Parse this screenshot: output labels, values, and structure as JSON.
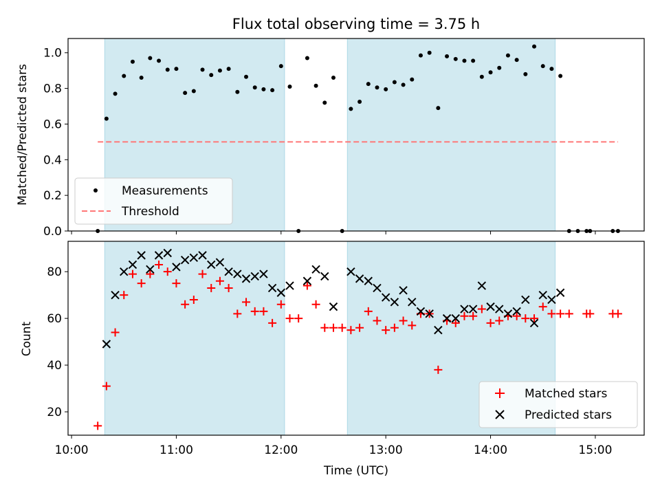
{
  "chart_data": [
    {
      "type": "scatter",
      "title": "Flux total observing time = 3.75 h",
      "xlabel": "",
      "ylabel": "Matched/Predicted stars",
      "xlim": [
        "09:58",
        "15:28"
      ],
      "ylim": [
        0,
        1.08
      ],
      "yticks": [
        "0.0",
        "0.2",
        "0.4",
        "0.6",
        "0.8",
        "1.0"
      ],
      "shaded_intervals": [
        [
          "10:19",
          "12:02"
        ],
        [
          "12:38",
          "14:37"
        ]
      ],
      "series": [
        {
          "name": "Measurements",
          "marker": "dot",
          "color": "#000000",
          "points": [
            [
              "10:15",
              0.0
            ],
            [
              "10:20",
              0.63
            ],
            [
              "10:25",
              0.77
            ],
            [
              "10:30",
              0.87
            ],
            [
              "10:35",
              0.95
            ],
            [
              "10:40",
              0.86
            ],
            [
              "10:45",
              0.97
            ],
            [
              "10:50",
              0.955
            ],
            [
              "10:55",
              0.905
            ],
            [
              "11:00",
              0.91
            ],
            [
              "11:05",
              0.775
            ],
            [
              "11:10",
              0.785
            ],
            [
              "11:15",
              0.905
            ],
            [
              "11:20",
              0.875
            ],
            [
              "11:25",
              0.9
            ],
            [
              "11:30",
              0.91
            ],
            [
              "11:35",
              0.78
            ],
            [
              "11:40",
              0.865
            ],
            [
              "11:45",
              0.805
            ],
            [
              "11:50",
              0.795
            ],
            [
              "11:55",
              0.79
            ],
            [
              "12:00",
              0.925
            ],
            [
              "12:05",
              0.81
            ],
            [
              "12:10",
              0.0
            ],
            [
              "12:15",
              0.97
            ],
            [
              "12:20",
              0.815
            ],
            [
              "12:25",
              0.72
            ],
            [
              "12:30",
              0.86
            ],
            [
              "12:35",
              0.0
            ],
            [
              "12:40",
              0.685
            ],
            [
              "12:45",
              0.725
            ],
            [
              "12:50",
              0.825
            ],
            [
              "12:55",
              0.805
            ],
            [
              "13:00",
              0.795
            ],
            [
              "13:05",
              0.835
            ],
            [
              "13:10",
              0.82
            ],
            [
              "13:15",
              0.85
            ],
            [
              "13:20",
              0.985
            ],
            [
              "13:25",
              1.0
            ],
            [
              "13:30",
              0.69
            ],
            [
              "13:35",
              0.98
            ],
            [
              "13:40",
              0.965
            ],
            [
              "13:45",
              0.955
            ],
            [
              "13:50",
              0.955
            ],
            [
              "13:55",
              0.865
            ],
            [
              "14:00",
              0.89
            ],
            [
              "14:05",
              0.915
            ],
            [
              "14:10",
              0.985
            ],
            [
              "14:15",
              0.96
            ],
            [
              "14:20",
              0.88
            ],
            [
              "14:25",
              1.035
            ],
            [
              "14:30",
              0.925
            ],
            [
              "14:35",
              0.91
            ],
            [
              "14:40",
              0.87
            ],
            [
              "14:45",
              0.0
            ],
            [
              "14:50",
              0.0
            ],
            [
              "14:55",
              0.0
            ],
            [
              "14:57",
              0.0
            ],
            [
              "15:10",
              0.0
            ],
            [
              "15:13",
              0.0
            ]
          ]
        },
        {
          "name": "Threshold",
          "type": "line",
          "style": "dashed",
          "color": "#ff7777",
          "x": [
            "10:15",
            "15:13"
          ],
          "values": [
            0.5,
            0.5
          ]
        }
      ],
      "legend": "lower-left",
      "grid": false
    },
    {
      "type": "scatter",
      "title": "",
      "xlabel": "Time (UTC)",
      "ylabel": "Count",
      "xlim": [
        "09:58",
        "15:28"
      ],
      "ylim": [
        10,
        93
      ],
      "xticks": [
        "10:00",
        "11:00",
        "12:00",
        "13:00",
        "14:00",
        "15:00"
      ],
      "yticks": [
        "20",
        "40",
        "60",
        "80"
      ],
      "shaded_intervals": [
        [
          "10:19",
          "12:02"
        ],
        [
          "12:38",
          "14:37"
        ]
      ],
      "series": [
        {
          "name": "Matched stars",
          "marker": "plus",
          "color": "#ff0000",
          "points": [
            [
              "10:15",
              14
            ],
            [
              "10:20",
              31
            ],
            [
              "10:25",
              54
            ],
            [
              "10:30",
              70
            ],
            [
              "10:35",
              79
            ],
            [
              "10:40",
              75
            ],
            [
              "10:45",
              79
            ],
            [
              "10:50",
              83
            ],
            [
              "10:55",
              80
            ],
            [
              "11:00",
              75
            ],
            [
              "11:05",
              66
            ],
            [
              "11:10",
              68
            ],
            [
              "11:15",
              79
            ],
            [
              "11:20",
              73
            ],
            [
              "11:25",
              76
            ],
            [
              "11:30",
              73
            ],
            [
              "11:35",
              62
            ],
            [
              "11:40",
              67
            ],
            [
              "11:45",
              63
            ],
            [
              "11:50",
              63
            ],
            [
              "11:55",
              58
            ],
            [
              "12:00",
              66
            ],
            [
              "12:05",
              60
            ],
            [
              "12:10",
              60
            ],
            [
              "12:15",
              74
            ],
            [
              "12:20",
              66
            ],
            [
              "12:25",
              56
            ],
            [
              "12:30",
              56
            ],
            [
              "12:35",
              56
            ],
            [
              "12:40",
              55
            ],
            [
              "12:45",
              56
            ],
            [
              "12:50",
              63
            ],
            [
              "12:55",
              59
            ],
            [
              "13:00",
              55
            ],
            [
              "13:05",
              56
            ],
            [
              "13:10",
              59
            ],
            [
              "13:15",
              57
            ],
            [
              "13:20",
              62
            ],
            [
              "13:25",
              62
            ],
            [
              "13:30",
              38
            ],
            [
              "13:35",
              59
            ],
            [
              "13:40",
              58
            ],
            [
              "13:45",
              61
            ],
            [
              "13:50",
              61
            ],
            [
              "13:55",
              64
            ],
            [
              "14:00",
              58
            ],
            [
              "14:05",
              59
            ],
            [
              "14:10",
              61
            ],
            [
              "14:15",
              61
            ],
            [
              "14:20",
              60
            ],
            [
              "14:25",
              60
            ],
            [
              "14:30",
              65
            ],
            [
              "14:35",
              62
            ],
            [
              "14:40",
              62
            ],
            [
              "14:45",
              62
            ],
            [
              "14:55",
              62
            ],
            [
              "14:57",
              62
            ],
            [
              "15:10",
              62
            ],
            [
              "15:13",
              62
            ]
          ]
        },
        {
          "name": "Predicted stars",
          "marker": "x",
          "color": "#000000",
          "points": [
            [
              "10:20",
              49
            ],
            [
              "10:25",
              70
            ],
            [
              "10:30",
              80
            ],
            [
              "10:35",
              83
            ],
            [
              "10:40",
              87
            ],
            [
              "10:45",
              81
            ],
            [
              "10:50",
              87
            ],
            [
              "10:55",
              88
            ],
            [
              "11:00",
              82
            ],
            [
              "11:05",
              85
            ],
            [
              "11:10",
              86
            ],
            [
              "11:15",
              87
            ],
            [
              "11:20",
              83
            ],
            [
              "11:25",
              84
            ],
            [
              "11:30",
              80
            ],
            [
              "11:35",
              79
            ],
            [
              "11:40",
              77
            ],
            [
              "11:45",
              78
            ],
            [
              "11:50",
              79
            ],
            [
              "11:55",
              73
            ],
            [
              "12:00",
              71
            ],
            [
              "12:05",
              74
            ],
            [
              "12:15",
              76
            ],
            [
              "12:20",
              81
            ],
            [
              "12:25",
              78
            ],
            [
              "12:30",
              65
            ],
            [
              "12:40",
              80
            ],
            [
              "12:45",
              77
            ],
            [
              "12:50",
              76
            ],
            [
              "12:55",
              73
            ],
            [
              "13:00",
              69
            ],
            [
              "13:05",
              67
            ],
            [
              "13:10",
              72
            ],
            [
              "13:15",
              67
            ],
            [
              "13:20",
              63
            ],
            [
              "13:25",
              62
            ],
            [
              "13:30",
              55
            ],
            [
              "13:35",
              60
            ],
            [
              "13:40",
              60
            ],
            [
              "13:45",
              64
            ],
            [
              "13:50",
              64
            ],
            [
              "13:55",
              74
            ],
            [
              "14:00",
              65
            ],
            [
              "14:05",
              64
            ],
            [
              "14:10",
              62
            ],
            [
              "14:15",
              63
            ],
            [
              "14:20",
              68
            ],
            [
              "14:25",
              58
            ],
            [
              "14:30",
              70
            ],
            [
              "14:35",
              68
            ],
            [
              "14:40",
              71
            ]
          ]
        }
      ],
      "legend": "lower-right",
      "grid": false
    }
  ],
  "colors": {
    "shade": "#add8e6",
    "threshold": "#ff7777",
    "matched": "#ff0000",
    "predicted": "#000000"
  }
}
